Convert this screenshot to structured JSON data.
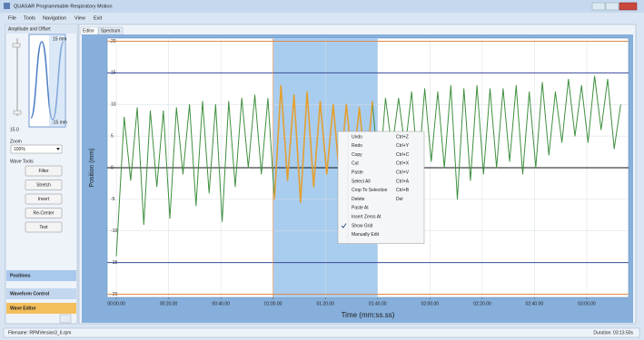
{
  "window": {
    "title": "QUASAR Programmable Respiratory Motion"
  },
  "menu": [
    "File",
    "Tools",
    "Navigation",
    "View",
    "Exit"
  ],
  "left_panel": {
    "amplitude_title": "Amplitude and Offset",
    "max_label": "15 mm",
    "min_label": "-15 mm",
    "offset_value": "15.0",
    "zoom_label": "Zoom",
    "zoom_value": "100%",
    "wave_tools_label": "Wave Tools",
    "buttons": [
      "Filter",
      "Stretch",
      "Invert",
      "Re-Center",
      "Test"
    ],
    "nav": [
      "Positions",
      "Waveform Control",
      "Wave Editor"
    ]
  },
  "tabs": [
    "Editor",
    "Spectrum"
  ],
  "chart_data": {
    "type": "line",
    "y_label": "Position (mm)",
    "x_label": "Time (mm:ss.ss)",
    "xlim": [
      -3.5,
      196
    ],
    "ylim": [
      -20.5,
      20.5
    ],
    "xticks": [
      {
        "value": 0,
        "label": "00:00.00"
      },
      {
        "value": 20,
        "label": "00:20.00"
      },
      {
        "value": 40,
        "label": "00:40.00"
      },
      {
        "value": 60,
        "label": "01:00.00"
      },
      {
        "value": 80,
        "label": "01:20.00"
      },
      {
        "value": 100,
        "label": "01:40.00"
      },
      {
        "value": 120,
        "label": "02:00.00"
      },
      {
        "value": 140,
        "label": "02:20.00"
      },
      {
        "value": 160,
        "label": "02:40.00"
      },
      {
        "value": 180,
        "label": "03:00.00"
      }
    ],
    "yticks": [
      20,
      15,
      10,
      5,
      0,
      -5,
      -10,
      -15,
      -20
    ],
    "grid": true,
    "reference_lines": [
      {
        "value": 20,
        "color": "#e08a4a"
      },
      {
        "value": -20,
        "color": "#e08a4a"
      },
      {
        "value": 15,
        "color": "#3a4a9a"
      },
      {
        "value": -15,
        "color": "#3a4a9a"
      },
      {
        "value": 0,
        "color": "#111111"
      }
    ],
    "selection": [
      60,
      100
    ],
    "selection_color": "#a9cdef",
    "x": [
      0,
      3,
      5.5,
      8,
      10.5,
      13,
      15.5,
      18,
      20.5,
      23,
      25.5,
      28,
      30.5,
      33,
      35.5,
      38,
      40.5,
      43,
      45.5,
      48,
      50.5,
      53,
      55.5,
      58,
      60.5,
      63,
      65.5,
      68,
      70.5,
      73,
      75.5,
      78,
      80.5,
      83,
      85.5,
      88,
      90.5,
      93,
      95.5,
      98,
      100.5,
      103,
      105.5,
      108,
      110.5,
      113,
      115.5,
      118,
      120.5,
      123,
      125.5,
      128,
      130.5,
      133,
      135.5,
      138,
      140.5,
      143,
      145.5,
      148,
      150.5,
      153,
      155.5,
      158,
      160.5,
      163,
      165.5,
      168,
      170.5,
      173,
      175.5,
      178,
      180.5,
      183,
      185.5,
      188,
      190.5,
      193
    ],
    "series": [
      {
        "color": "#3f8f3f",
        "selected_color": "#e3a032",
        "values": [
          -14,
          8,
          -2,
          9.5,
          -9,
          9,
          -3,
          9,
          -8,
          9.5,
          -1,
          10,
          -6,
          10.5,
          -4,
          10,
          -8.5,
          10.5,
          -3,
          11,
          0,
          11.5,
          -1,
          11,
          -5,
          13,
          -2,
          11.5,
          -5.5,
          12,
          -3,
          10.5,
          -1,
          10,
          -2,
          10,
          0,
          9.5,
          -1,
          10.5,
          -2,
          11,
          3,
          11,
          3,
          12,
          -1,
          12.5,
          1,
          12,
          0,
          13,
          -5,
          12.5,
          -2,
          13,
          -1,
          12.5,
          0,
          12.5,
          1,
          13,
          -1,
          12,
          0,
          13.5,
          2,
          12,
          4,
          14,
          5,
          13,
          4,
          14.5,
          6,
          14,
          3,
          10
        ]
      }
    ]
  },
  "context_menu": {
    "items": [
      {
        "label": "Undo",
        "shortcut": "Ctrl+Z",
        "enabled": true
      },
      {
        "label": "Redo",
        "shortcut": "Ctrl+Y",
        "enabled": false
      },
      {
        "label": "Copy",
        "shortcut": "Ctrl+C",
        "enabled": true
      },
      {
        "label": "Cut",
        "shortcut": "Ctrl+X",
        "enabled": true
      },
      {
        "label": "Paste",
        "shortcut": "Ctrl+V",
        "enabled": false
      },
      {
        "label": "Select All",
        "shortcut": "Ctrl+A",
        "enabled": true
      },
      {
        "label": "Crop To Selection",
        "shortcut": "Ctrl+B",
        "enabled": true
      },
      {
        "label": "Delete",
        "shortcut": "Del",
        "enabled": true
      },
      {
        "label": "Paste At",
        "enabled": false
      },
      {
        "label": "Insert Zeros At",
        "enabled": true
      },
      {
        "label": "Show Grid",
        "checked": true,
        "enabled": true
      },
      {
        "label": "Manually Edit",
        "enabled": true
      }
    ]
  },
  "status": {
    "filename": "Filename: RPMVersion3_6.rpm",
    "duration": "Duration: 03:13.50s"
  }
}
